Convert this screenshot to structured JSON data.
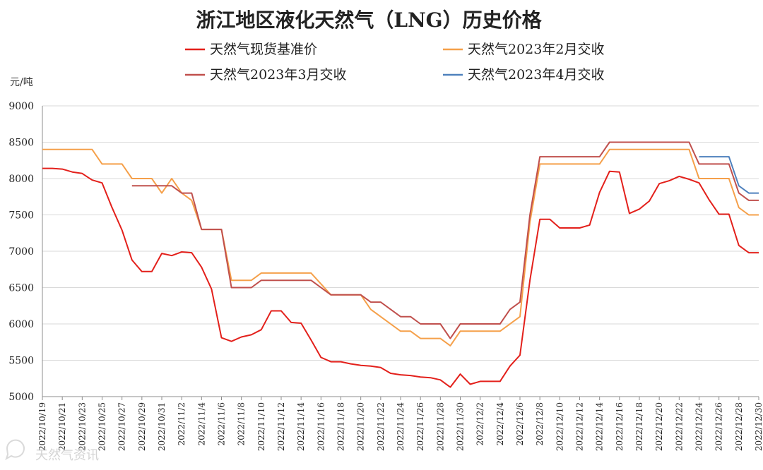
{
  "chart_data": {
    "type": "line",
    "title": "浙江地区液化天然气（LNG）历史价格",
    "ylabel": "元/吨",
    "ylim": [
      5000,
      9000
    ],
    "yticks": [
      5000,
      5500,
      6000,
      6500,
      7000,
      7500,
      8000,
      8500,
      9000
    ],
    "grid": true,
    "legend_position": "top",
    "xticks": [
      "2022/10/19",
      "2022/10/21",
      "2022/10/23",
      "2022/10/25",
      "2022/10/27",
      "2022/10/29",
      "2022/10/31",
      "2022/11/2",
      "2022/11/4",
      "2022/11/6",
      "2022/11/8",
      "2022/11/10",
      "2022/11/12",
      "2022/11/14",
      "2022/11/16",
      "2022/11/18",
      "2022/11/20",
      "2022/11/22",
      "2022/11/24",
      "2022/11/26",
      "2022/11/28",
      "2022/11/30",
      "2022/12/2",
      "2022/12/4",
      "2022/12/6",
      "2022/12/8",
      "2022/12/10",
      "2022/12/12",
      "2022/12/14",
      "2022/12/16",
      "2022/12/18",
      "2022/12/20",
      "2022/12/22",
      "2022/12/24",
      "2022/12/26",
      "2022/12/28",
      "2022/12/30"
    ],
    "series": [
      {
        "name": "天然气现货基准价",
        "color": "#e3201b",
        "points": [
          [
            "2022/10/19",
            8140
          ],
          [
            "2022/10/20",
            8140
          ],
          [
            "2022/10/21",
            8130
          ],
          [
            "2022/10/22",
            8090
          ],
          [
            "2022/10/23",
            8070
          ],
          [
            "2022/10/24",
            7980
          ],
          [
            "2022/10/25",
            7940
          ],
          [
            "2022/10/26",
            7600
          ],
          [
            "2022/10/27",
            7290
          ],
          [
            "2022/10/28",
            6880
          ],
          [
            "2022/10/29",
            6720
          ],
          [
            "2022/10/30",
            6720
          ],
          [
            "2022/10/31",
            6970
          ],
          [
            "2022/11/1",
            6940
          ],
          [
            "2022/11/2",
            6990
          ],
          [
            "2022/11/3",
            6980
          ],
          [
            "2022/11/4",
            6780
          ],
          [
            "2022/11/5",
            6480
          ],
          [
            "2022/11/6",
            5810
          ],
          [
            "2022/11/7",
            5760
          ],
          [
            "2022/11/8",
            5820
          ],
          [
            "2022/11/9",
            5850
          ],
          [
            "2022/11/10",
            5920
          ],
          [
            "2022/11/11",
            6180
          ],
          [
            "2022/11/12",
            6180
          ],
          [
            "2022/11/13",
            6020
          ],
          [
            "2022/11/14",
            6010
          ],
          [
            "2022/11/15",
            5780
          ],
          [
            "2022/11/16",
            5540
          ],
          [
            "2022/11/17",
            5480
          ],
          [
            "2022/11/18",
            5480
          ],
          [
            "2022/11/19",
            5450
          ],
          [
            "2022/11/20",
            5430
          ],
          [
            "2022/11/21",
            5420
          ],
          [
            "2022/11/22",
            5400
          ],
          [
            "2022/11/23",
            5320
          ],
          [
            "2022/11/24",
            5300
          ],
          [
            "2022/11/25",
            5290
          ],
          [
            "2022/11/26",
            5270
          ],
          [
            "2022/11/27",
            5260
          ],
          [
            "2022/11/28",
            5230
          ],
          [
            "2022/11/29",
            5130
          ],
          [
            "2022/11/30",
            5310
          ],
          [
            "2022/12/1",
            5170
          ],
          [
            "2022/12/2",
            5210
          ],
          [
            "2022/12/3",
            5210
          ],
          [
            "2022/12/4",
            5210
          ],
          [
            "2022/12/5",
            5420
          ],
          [
            "2022/12/6",
            5570
          ],
          [
            "2022/12/7",
            6600
          ],
          [
            "2022/12/8",
            7440
          ],
          [
            "2022/12/9",
            7440
          ],
          [
            "2022/12/10",
            7320
          ],
          [
            "2022/12/11",
            7320
          ],
          [
            "2022/12/12",
            7320
          ],
          [
            "2022/12/13",
            7360
          ],
          [
            "2022/12/14",
            7810
          ],
          [
            "2022/12/15",
            8100
          ],
          [
            "2022/12/16",
            8090
          ],
          [
            "2022/12/17",
            7520
          ],
          [
            "2022/12/18",
            7580
          ],
          [
            "2022/12/19",
            7690
          ],
          [
            "2022/12/20",
            7930
          ],
          [
            "2022/12/21",
            7970
          ],
          [
            "2022/12/22",
            8030
          ],
          [
            "2022/12/23",
            7990
          ],
          [
            "2022/12/24",
            7940
          ],
          [
            "2022/12/25",
            7710
          ],
          [
            "2022/12/26",
            7510
          ],
          [
            "2022/12/27",
            7510
          ],
          [
            "2022/12/28",
            7080
          ],
          [
            "2022/12/29",
            6980
          ],
          [
            "2022/12/30",
            6980
          ]
        ]
      },
      {
        "name": "天然气2023年2月交收",
        "color": "#f5a04a",
        "points": [
          [
            "2022/10/19",
            8400
          ],
          [
            "2022/10/24",
            8400
          ],
          [
            "2022/10/25",
            8200
          ],
          [
            "2022/10/27",
            8200
          ],
          [
            "2022/10/28",
            8000
          ],
          [
            "2022/10/30",
            8000
          ],
          [
            "2022/10/31",
            7800
          ],
          [
            "2022/11/1",
            8000
          ],
          [
            "2022/11/2",
            7800
          ],
          [
            "2022/11/3",
            7700
          ],
          [
            "2022/11/4",
            7300
          ],
          [
            "2022/11/6",
            7300
          ],
          [
            "2022/11/7",
            6600
          ],
          [
            "2022/11/9",
            6600
          ],
          [
            "2022/11/10",
            6700
          ],
          [
            "2022/11/15",
            6700
          ],
          [
            "2022/11/17",
            6400
          ],
          [
            "2022/11/20",
            6400
          ],
          [
            "2022/11/21",
            6200
          ],
          [
            "2022/11/22",
            6100
          ],
          [
            "2022/11/24",
            5900
          ],
          [
            "2022/11/25",
            5900
          ],
          [
            "2022/11/26",
            5800
          ],
          [
            "2022/11/28",
            5800
          ],
          [
            "2022/11/29",
            5700
          ],
          [
            "2022/11/30",
            5900
          ],
          [
            "2022/12/4",
            5900
          ],
          [
            "2022/12/6",
            6100
          ],
          [
            "2022/12/7",
            7400
          ],
          [
            "2022/12/8",
            8200
          ],
          [
            "2022/12/14",
            8200
          ],
          [
            "2022/12/15",
            8400
          ],
          [
            "2022/12/23",
            8400
          ],
          [
            "2022/12/24",
            8000
          ],
          [
            "2022/12/27",
            8000
          ],
          [
            "2022/12/28",
            7600
          ],
          [
            "2022/12/29",
            7500
          ],
          [
            "2022/12/30",
            7500
          ]
        ]
      },
      {
        "name": "天然气2023年3月交收",
        "color": "#c0504d",
        "points": [
          [
            "2022/10/28",
            7900
          ],
          [
            "2022/10/31",
            7900
          ],
          [
            "2022/11/1",
            7900
          ],
          [
            "2022/11/2",
            7800
          ],
          [
            "2022/11/3",
            7800
          ],
          [
            "2022/11/4",
            7300
          ],
          [
            "2022/11/6",
            7300
          ],
          [
            "2022/11/7",
            6500
          ],
          [
            "2022/11/9",
            6500
          ],
          [
            "2022/11/10",
            6600
          ],
          [
            "2022/11/15",
            6600
          ],
          [
            "2022/11/17",
            6400
          ],
          [
            "2022/11/20",
            6400
          ],
          [
            "2022/11/21",
            6300
          ],
          [
            "2022/11/22",
            6300
          ],
          [
            "2022/11/24",
            6100
          ],
          [
            "2022/11/25",
            6100
          ],
          [
            "2022/11/26",
            6000
          ],
          [
            "2022/11/28",
            6000
          ],
          [
            "2022/11/29",
            5800
          ],
          [
            "2022/11/30",
            6000
          ],
          [
            "2022/12/4",
            6000
          ],
          [
            "2022/12/5",
            6200
          ],
          [
            "2022/12/6",
            6300
          ],
          [
            "2022/12/7",
            7500
          ],
          [
            "2022/12/8",
            8300
          ],
          [
            "2022/12/14",
            8300
          ],
          [
            "2022/12/15",
            8500
          ],
          [
            "2022/12/23",
            8500
          ],
          [
            "2022/12/24",
            8200
          ],
          [
            "2022/12/27",
            8200
          ],
          [
            "2022/12/28",
            7800
          ],
          [
            "2022/12/29",
            7700
          ],
          [
            "2022/12/30",
            7700
          ]
        ]
      },
      {
        "name": "天然气2023年4月交收",
        "color": "#4f81bd",
        "points": [
          [
            "2022/12/24",
            8300
          ],
          [
            "2022/12/27",
            8300
          ],
          [
            "2022/12/28",
            7900
          ],
          [
            "2022/12/29",
            7800
          ],
          [
            "2022/12/30",
            7800
          ]
        ]
      }
    ]
  },
  "watermark": {
    "text": "天然气资讯",
    "icon": "chat-bubble-icon"
  }
}
